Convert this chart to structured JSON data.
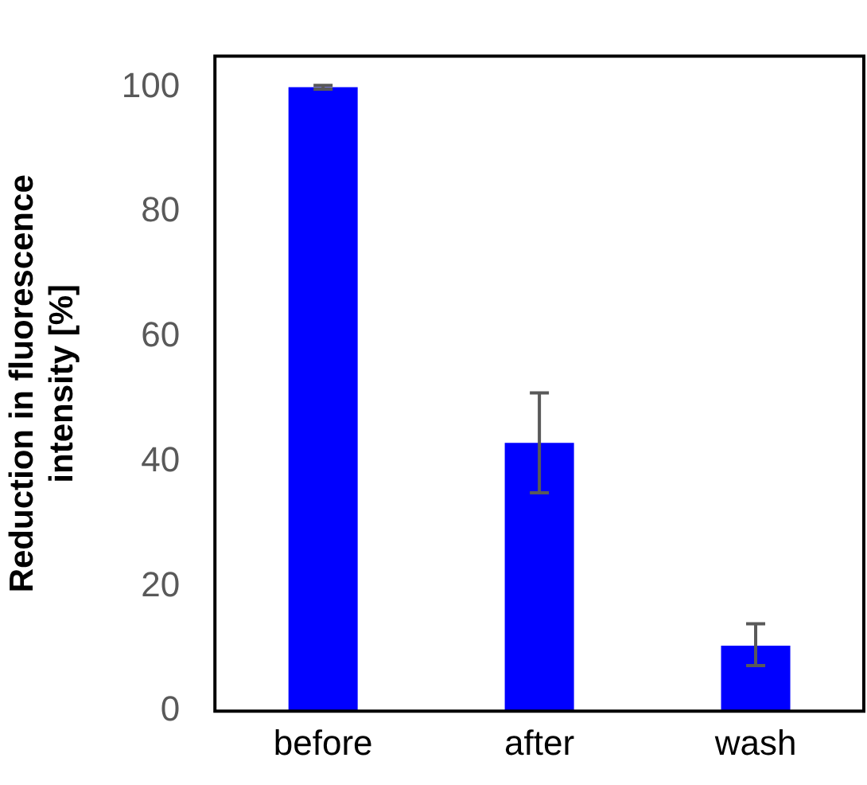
{
  "chart_data": {
    "type": "bar",
    "ylabel": "Reduction in fluorescence intensity [%]",
    "categories": [
      "before",
      "after",
      "wash"
    ],
    "values": [
      100,
      43,
      10.5
    ],
    "color": "#0000ff",
    "errors": [
      0.3,
      [
        35,
        51
      ],
      [
        7.3,
        14
      ]
    ],
    "ylim": [
      0,
      105
    ],
    "yticks": [
      0,
      20,
      40,
      60,
      80,
      100
    ],
    "grid": false,
    "legend": false
  }
}
